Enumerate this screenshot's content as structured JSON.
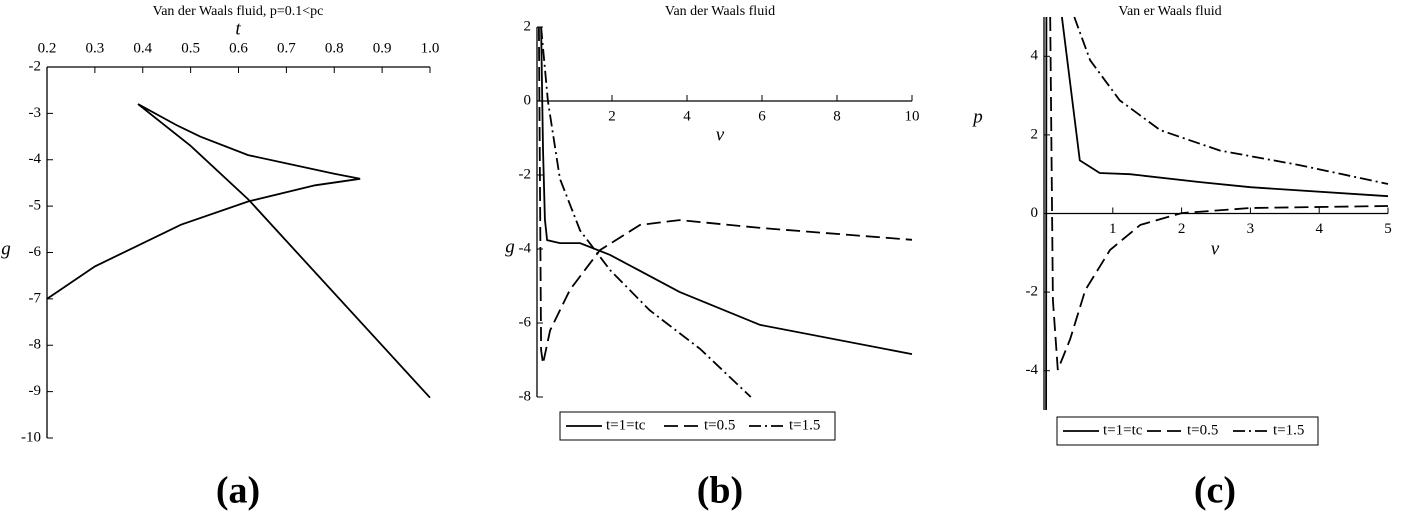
{
  "chart_data": [
    {
      "type": "line",
      "label": "(a)",
      "title": "Van der Waals fluid, p=0.1<pc",
      "x_label": "t",
      "y_label": "g",
      "xlim": [
        0.2,
        1.0
      ],
      "ylim": [
        -10,
        -2
      ],
      "x_axis_at": -2,
      "xticks": [
        0.2,
        0.3,
        0.4,
        0.5,
        0.6,
        0.7,
        0.8,
        0.9,
        {
          "value": 1,
          "label": "1.0"
        }
      ],
      "yticks": [
        -2,
        -3,
        -4,
        -5,
        -6,
        -7,
        -8,
        -9,
        -10
      ],
      "series": [
        {
          "color": "#000000",
          "dash": "solid",
          "x": [
            0.2,
            0.3,
            0.48,
            0.62,
            0.76,
            0.854,
            0.8,
            0.62,
            0.52,
            0.47,
            0.39,
            0.5,
            0.62,
            1.0
          ],
          "values": [
            -7,
            -6.3,
            -5.4,
            -4.9,
            -4.55,
            -4.41,
            -4.3,
            -3.9,
            -3.5,
            -3.25,
            -2.8,
            -3.7,
            -4.85,
            -9.13
          ]
        }
      ]
    },
    {
      "type": "line",
      "label": "(b)",
      "title": "Van der Waals fluid",
      "x_label": "v",
      "y_label": "g",
      "xlim": [
        0,
        10
      ],
      "ylim": [
        -8,
        2
      ],
      "x_axis_at": 0,
      "xticks": [
        2,
        4,
        6,
        8,
        10
      ],
      "yticks": [
        -8,
        -6,
        -4,
        -2,
        0,
        2
      ],
      "legend": "bottom",
      "series": [
        {
          "name": "t=1=tc",
          "color": "#000000",
          "dash": "solid",
          "x": [
            0.11,
            0.16,
            0.21,
            0.27,
            0.61,
            1.15,
            1.95,
            3.8,
            5.95,
            10
          ],
          "values": [
            2,
            -1.3,
            -3.2,
            -3.76,
            -3.84,
            -3.84,
            -4.16,
            -5.16,
            -6.05,
            -6.84
          ]
        },
        {
          "name": "t=0.5",
          "color": "#000000",
          "dash": "dashed",
          "x": [
            0.05,
            0.11,
            0.16,
            0.35,
            0.88,
            1.68,
            2.75,
            3.8,
            5.95,
            10
          ],
          "values": [
            2,
            -6.73,
            -7.1,
            -6.2,
            -5.1,
            -4.03,
            -3.35,
            -3.22,
            -3.43,
            -3.75
          ]
        },
        {
          "name": "t=1.5",
          "color": "#000000",
          "dash": "dashdot",
          "x": [
            0.11,
            0.29,
            0.61,
            1.15,
            1.95,
            3,
            4.35,
            5.7
          ],
          "values": [
            2,
            0,
            -2.1,
            -3.5,
            -4.57,
            -5.65,
            -6.7,
            -8
          ]
        }
      ]
    },
    {
      "type": "line",
      "label": "(c)",
      "title": "Van er Waals fluid",
      "x_label": "v",
      "y_label": "p",
      "xlim": [
        0,
        5
      ],
      "ylim": [
        -5,
        5
      ],
      "x_axis_at": 0,
      "xticks": [
        1,
        2,
        3,
        4,
        5
      ],
      "yticks": [
        -4,
        -2,
        0,
        2,
        4
      ],
      "legend": "bottom",
      "series": [
        {
          "name": "t=1=tc",
          "color": "#000000",
          "dash": "solid",
          "x": [
            0.03,
            0.035,
            null,
            0.26,
            0.52,
            0.81,
            1.25,
            2.27,
            3,
            5
          ],
          "values": [
            -5,
            5,
            null,
            5,
            1.35,
            1.03,
            1,
            0.8,
            0.67,
            0.44
          ]
        },
        {
          "name": "t=0.5",
          "color": "#000000",
          "dash": "dashed",
          "x": [
            0.09,
            0.13,
            0.2,
            0.38,
            0.6,
            0.96,
            1.4,
            2,
            3,
            5
          ],
          "values": [
            5,
            -2.2,
            -3.98,
            -3.2,
            -1.95,
            -0.93,
            -0.29,
            0.01,
            0.14,
            0.19
          ]
        },
        {
          "name": "t=1.5",
          "color": "#000000",
          "dash": "dashdot",
          "x": [
            0.44,
            0.67,
            1.1,
            1.69,
            2.56,
            3.72,
            5
          ],
          "values": [
            5,
            3.9,
            2.88,
            2.12,
            1.6,
            1.23,
            0.75
          ]
        }
      ]
    }
  ]
}
